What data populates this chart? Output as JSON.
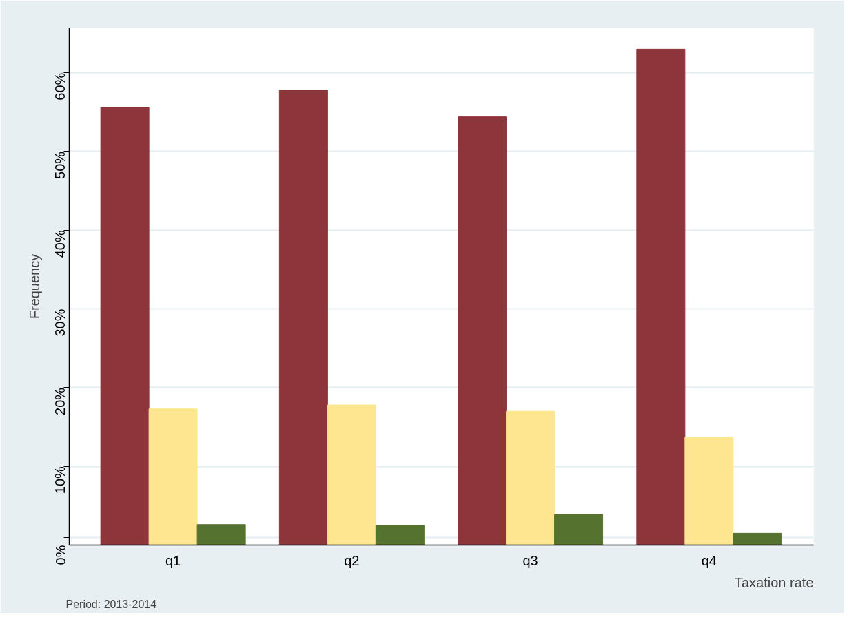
{
  "chart_data": {
    "type": "bar",
    "xlabel": "Taxation rate",
    "ylabel": "Frequency",
    "categories": [
      "q1",
      "q2",
      "q3",
      "q4"
    ],
    "series": [
      {
        "color": "#8e343b",
        "values": [
          55.6,
          57.8,
          54.4,
          63.0
        ]
      },
      {
        "color": "#fde68f",
        "values": [
          17.3,
          17.8,
          17.0,
          13.7
        ]
      },
      {
        "color": "#56722f",
        "values": [
          2.6,
          2.5,
          3.9,
          1.5
        ]
      }
    ],
    "ylim": [
      0,
      65.7
    ],
    "yticks": [
      {
        "value": 0,
        "label": "0%"
      },
      {
        "value": 1,
        "label": null
      },
      {
        "value": 10,
        "label": "10%"
      },
      {
        "value": 20,
        "label": "20%"
      },
      {
        "value": 30,
        "label": "30%"
      },
      {
        "value": 40,
        "label": "40%"
      },
      {
        "value": 50,
        "label": "50%"
      },
      {
        "value": 60,
        "label": "60%"
      }
    ],
    "grid": "y",
    "annotations": [
      "Period: 2013-2014"
    ]
  }
}
